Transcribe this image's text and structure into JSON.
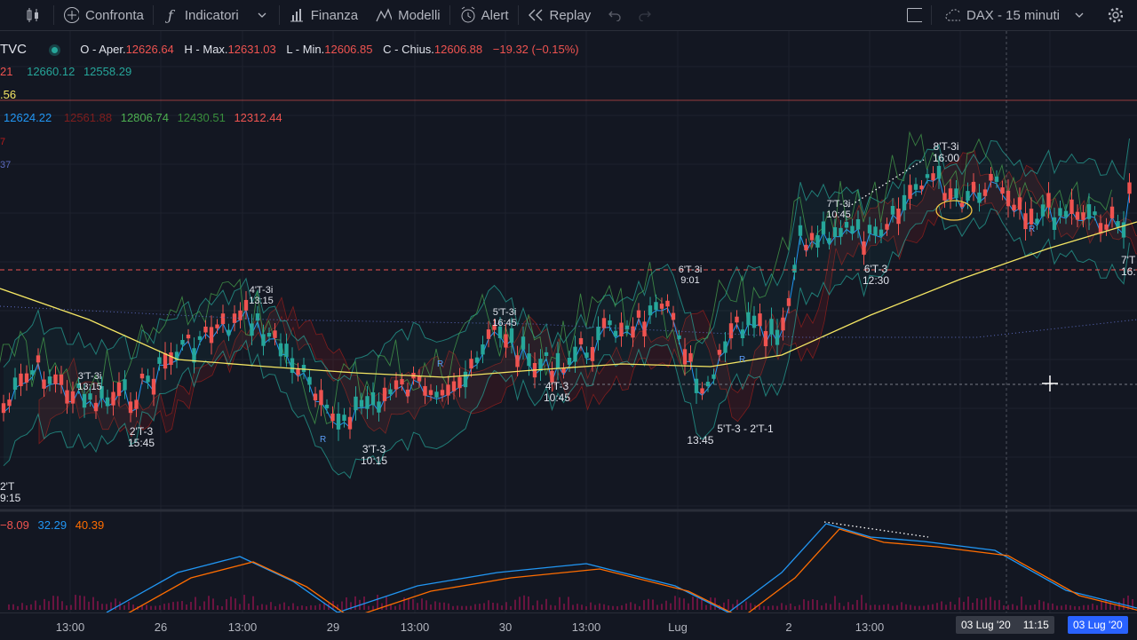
{
  "toolbar": {
    "compare": "Confronta",
    "indicators": "Indicatori",
    "financials": "Finanza",
    "templates": "Modelli",
    "alert": "Alert",
    "replay": "Replay",
    "layout_name": "DAX - 15 minuti"
  },
  "symbol": {
    "code": "TVC",
    "open_label": "O - Aper.",
    "open": "12626.64",
    "high_label": "H - Max.",
    "high": "12631.03",
    "low_label": "L - Min.",
    "low": "12606.85",
    "close_label": "C - Chius.",
    "close": "12606.88",
    "change": "−19.32 (−0.15%)"
  },
  "indicator_rows": {
    "row1": [
      "21",
      "12660.12",
      "12558.29"
    ],
    "row2": [
      ".56"
    ],
    "row3": [
      "12624.22",
      "12561.88",
      "12806.74",
      "12430.51",
      "12312.44"
    ],
    "row4": [
      "7"
    ],
    "row5": [
      "37"
    ]
  },
  "macd_legend": [
    "−8.09",
    "32.29",
    "40.39"
  ],
  "annotations": [
    {
      "id": "a1",
      "l1": "4'T-3i",
      "l2": "13:15"
    },
    {
      "id": "a2",
      "l1": "3'T-3i",
      "l2": "13:15"
    },
    {
      "id": "a3",
      "l1": "2'T-3",
      "l2": "15:45"
    },
    {
      "id": "a4",
      "l1": "3'T-3",
      "l2": "10:15"
    },
    {
      "id": "a5",
      "l1": "5'T-3i",
      "l2": "16:45"
    },
    {
      "id": "a6",
      "l1": "4'T-3",
      "l2": "10:45"
    },
    {
      "id": "a7",
      "l1": "6'T-3i",
      "l2": "9:01"
    },
    {
      "id": "a8",
      "l1": "5'T-3 - 2'T-1",
      "l2": "13:45"
    },
    {
      "id": "a9",
      "l1": "7'T-3i",
      "l2": "10:45"
    },
    {
      "id": "a10",
      "l1": "6'T-3",
      "l2": "12:30"
    },
    {
      "id": "a11",
      "l1": "8'T-3i",
      "l2": "16:00"
    },
    {
      "id": "a12",
      "l1": "7'T",
      "l2": "16:"
    },
    {
      "id": "a13",
      "l1": "2'T",
      "l2": "9:15"
    }
  ],
  "markers": [
    "R",
    "R",
    "R",
    "R"
  ],
  "time_axis": [
    "13:00",
    "26",
    "13:00",
    "29",
    "13:00",
    "30",
    "13:00",
    "Lug",
    "2",
    "13:00"
  ],
  "time_boxes": [
    "03 Lug '20",
    "11:15",
    "03 Lug '20"
  ],
  "colors": {
    "background": "#131722",
    "up": "#26a69a",
    "down": "#ef5350",
    "accent": "#2962ff",
    "sma": "#f5e663",
    "macd_line": "#2196f3",
    "signal_line": "#ff6d00"
  }
}
